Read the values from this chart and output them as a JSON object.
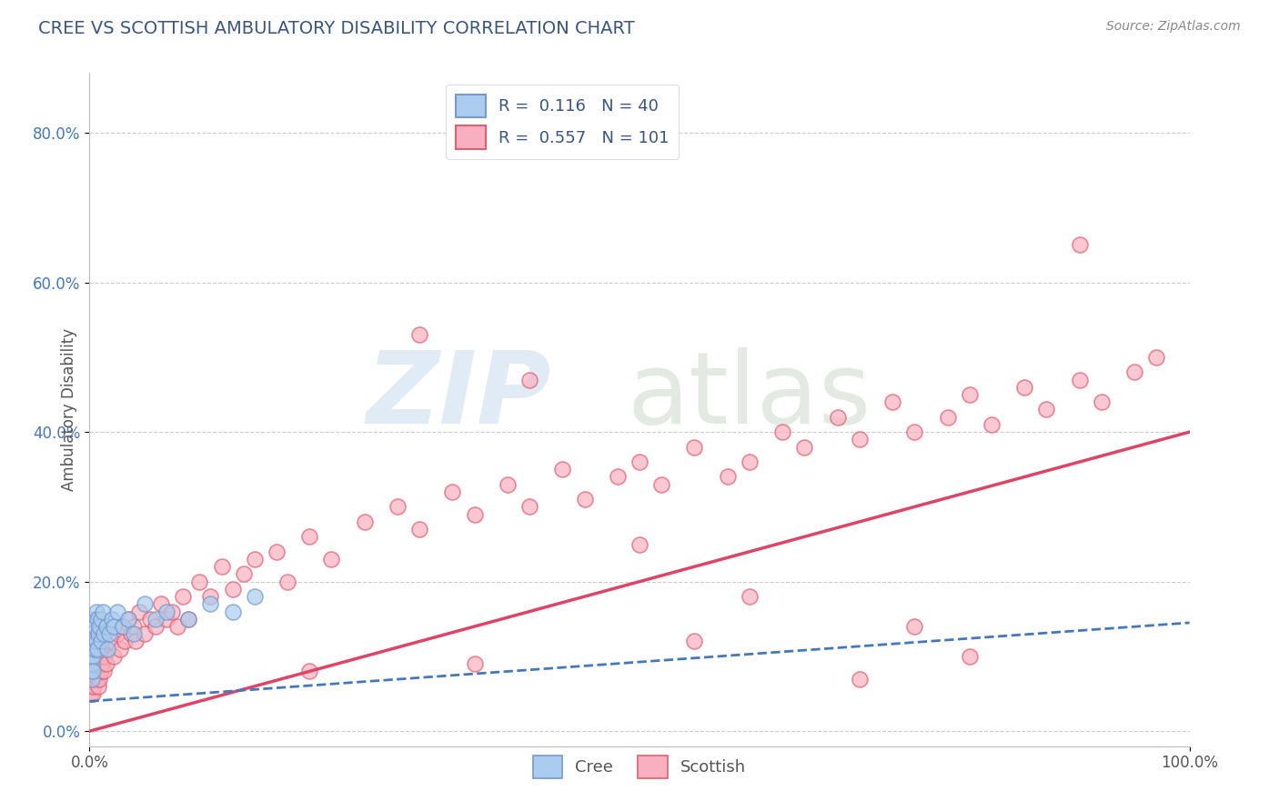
{
  "title": "CREE VS SCOTTISH AMBULATORY DISABILITY CORRELATION CHART",
  "source_text": "Source: ZipAtlas.com",
  "ylabel": "Ambulatory Disability",
  "xmin": 0.0,
  "xmax": 1.0,
  "ymin": -0.02,
  "ymax": 0.88,
  "ytick_values": [
    0.0,
    0.2,
    0.4,
    0.6,
    0.8
  ],
  "ytick_labels": [
    "0.0%",
    "20.0%",
    "40.0%",
    "60.0%",
    "80.0%"
  ],
  "xtick_values": [
    0.0,
    1.0
  ],
  "xtick_labels": [
    "0.0%",
    "100.0%"
  ],
  "legend_r_cree": "0.116",
  "legend_n_cree": "40",
  "legend_r_scottish": "0.557",
  "legend_n_scottish": "101",
  "cree_fill_color": "#aaccee",
  "cree_edge_color": "#7799cc",
  "scottish_fill_color": "#f8b0c0",
  "scottish_edge_color": "#e06070",
  "cree_line_color": "#4477bb",
  "scottish_line_color": "#dd4466",
  "title_color": "#3a5580",
  "axis_label_color": "#4477bb",
  "source_color": "#888888",
  "tick_label_color": "#555555",
  "background_color": "#ffffff",
  "grid_color": "#cccccc",
  "watermark_zip_color": "#c5d8ee",
  "watermark_atlas_color": "#b8ccb8",
  "cree_line_start_y": 0.04,
  "cree_line_end_y": 0.145,
  "scottish_line_start_y": 0.0,
  "scottish_line_end_y": 0.4,
  "cree_x": [
    0.001,
    0.001,
    0.001,
    0.002,
    0.002,
    0.002,
    0.002,
    0.003,
    0.003,
    0.003,
    0.004,
    0.004,
    0.005,
    0.005,
    0.006,
    0.006,
    0.007,
    0.007,
    0.008,
    0.009,
    0.01,
    0.01,
    0.012,
    0.013,
    0.015,
    0.016,
    0.018,
    0.02,
    0.022,
    0.025,
    0.03,
    0.035,
    0.04,
    0.05,
    0.06,
    0.07,
    0.09,
    0.11,
    0.13,
    0.15
  ],
  "cree_y": [
    0.12,
    0.1,
    0.08,
    0.14,
    0.11,
    0.09,
    0.07,
    0.13,
    0.1,
    0.08,
    0.15,
    0.12,
    0.14,
    0.11,
    0.16,
    0.12,
    0.15,
    0.11,
    0.13,
    0.14,
    0.15,
    0.12,
    0.16,
    0.13,
    0.14,
    0.11,
    0.13,
    0.15,
    0.14,
    0.16,
    0.14,
    0.15,
    0.13,
    0.17,
    0.15,
    0.16,
    0.15,
    0.17,
    0.16,
    0.18
  ],
  "scottish_x": [
    0.001,
    0.001,
    0.001,
    0.001,
    0.001,
    0.002,
    0.002,
    0.002,
    0.002,
    0.003,
    0.003,
    0.003,
    0.004,
    0.004,
    0.005,
    0.005,
    0.006,
    0.006,
    0.007,
    0.007,
    0.008,
    0.008,
    0.009,
    0.01,
    0.01,
    0.011,
    0.012,
    0.013,
    0.014,
    0.015,
    0.02,
    0.022,
    0.025,
    0.028,
    0.03,
    0.032,
    0.035,
    0.038,
    0.04,
    0.042,
    0.045,
    0.05,
    0.055,
    0.06,
    0.065,
    0.07,
    0.075,
    0.08,
    0.085,
    0.09,
    0.1,
    0.11,
    0.12,
    0.13,
    0.14,
    0.15,
    0.17,
    0.18,
    0.2,
    0.22,
    0.25,
    0.28,
    0.3,
    0.33,
    0.35,
    0.38,
    0.4,
    0.43,
    0.45,
    0.48,
    0.5,
    0.52,
    0.55,
    0.58,
    0.6,
    0.63,
    0.65,
    0.68,
    0.7,
    0.73,
    0.75,
    0.78,
    0.8,
    0.82,
    0.85,
    0.87,
    0.9,
    0.92,
    0.95,
    0.97,
    0.5,
    0.3,
    0.4,
    0.6,
    0.7,
    0.8,
    0.2,
    0.35,
    0.55,
    0.75,
    0.9
  ],
  "scottish_y": [
    0.05,
    0.06,
    0.07,
    0.08,
    0.09,
    0.1,
    0.06,
    0.07,
    0.08,
    0.09,
    0.05,
    0.07,
    0.08,
    0.06,
    0.09,
    0.07,
    0.08,
    0.1,
    0.07,
    0.08,
    0.06,
    0.09,
    0.07,
    0.1,
    0.08,
    0.09,
    0.11,
    0.08,
    0.1,
    0.09,
    0.12,
    0.1,
    0.13,
    0.11,
    0.14,
    0.12,
    0.15,
    0.13,
    0.14,
    0.12,
    0.16,
    0.13,
    0.15,
    0.14,
    0.17,
    0.15,
    0.16,
    0.14,
    0.18,
    0.15,
    0.2,
    0.18,
    0.22,
    0.19,
    0.21,
    0.23,
    0.24,
    0.2,
    0.26,
    0.23,
    0.28,
    0.3,
    0.27,
    0.32,
    0.29,
    0.33,
    0.3,
    0.35,
    0.31,
    0.34,
    0.36,
    0.33,
    0.38,
    0.34,
    0.36,
    0.4,
    0.38,
    0.42,
    0.39,
    0.44,
    0.4,
    0.42,
    0.45,
    0.41,
    0.46,
    0.43,
    0.47,
    0.44,
    0.48,
    0.5,
    0.25,
    0.53,
    0.47,
    0.18,
    0.07,
    0.1,
    0.08,
    0.09,
    0.12,
    0.14,
    0.65
  ]
}
